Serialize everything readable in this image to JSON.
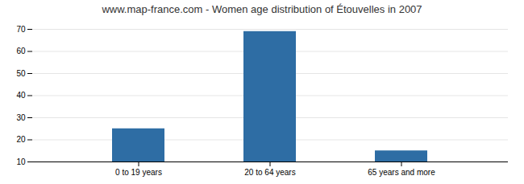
{
  "chart_data": {
    "type": "bar",
    "title": "www.map-france.com - Women age distribution of Étouvelles in 2007",
    "categories": [
      "0 to 19 years",
      "20 to 64 years",
      "65 years and more"
    ],
    "values": [
      25,
      69,
      15
    ],
    "color": "#2e6da4",
    "ylim": [
      10,
      70
    ],
    "yticks": [
      10,
      20,
      30,
      40,
      50,
      60,
      70
    ],
    "grid": true
  }
}
